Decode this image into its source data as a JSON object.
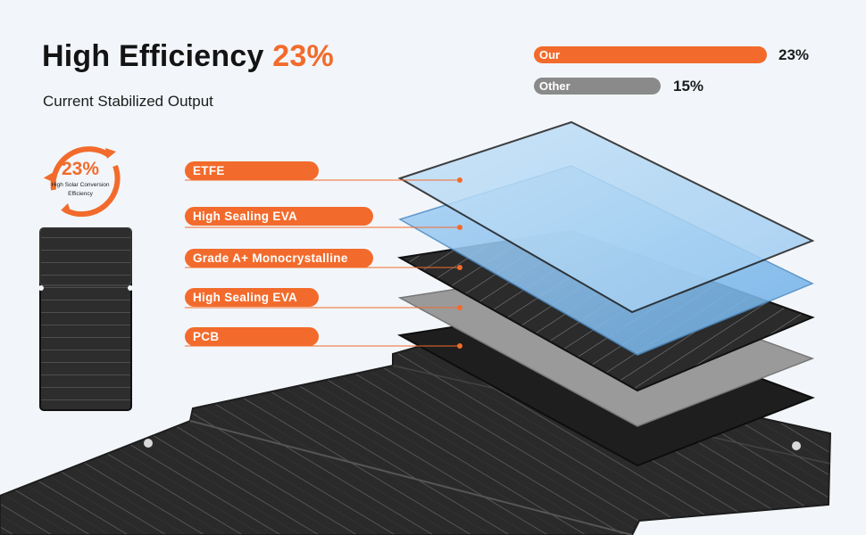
{
  "header": {
    "title_main": "High Efficiency",
    "title_accent": "23%",
    "subtitle": "Current Stabilized Output"
  },
  "comparison": {
    "our": {
      "label": "Our",
      "value_text": "23%",
      "value": 23,
      "color": "#f26b2c"
    },
    "other": {
      "label": "Other",
      "value_text": "15%",
      "value": 15,
      "color": "#8a8a8a"
    }
  },
  "badge": {
    "value": "23%",
    "caption_line1": "High Solar Conversion",
    "caption_line2": "Efficiency",
    "icon": "circular-arrows-icon"
  },
  "layers": [
    {
      "label": "ETFE",
      "color": "#a9d3f3"
    },
    {
      "label": "High Sealing EVA",
      "color": "#8fc2ef"
    },
    {
      "label": "Grade A+ Monocrystalline",
      "color": "#2b2b2b"
    },
    {
      "label": "High Sealing EVA",
      "color": "#9a9a9a"
    },
    {
      "label": "PCB",
      "color": "#1e1e1e"
    }
  ],
  "colors": {
    "accent": "#f26b2c",
    "background": "#f2f6fa"
  }
}
